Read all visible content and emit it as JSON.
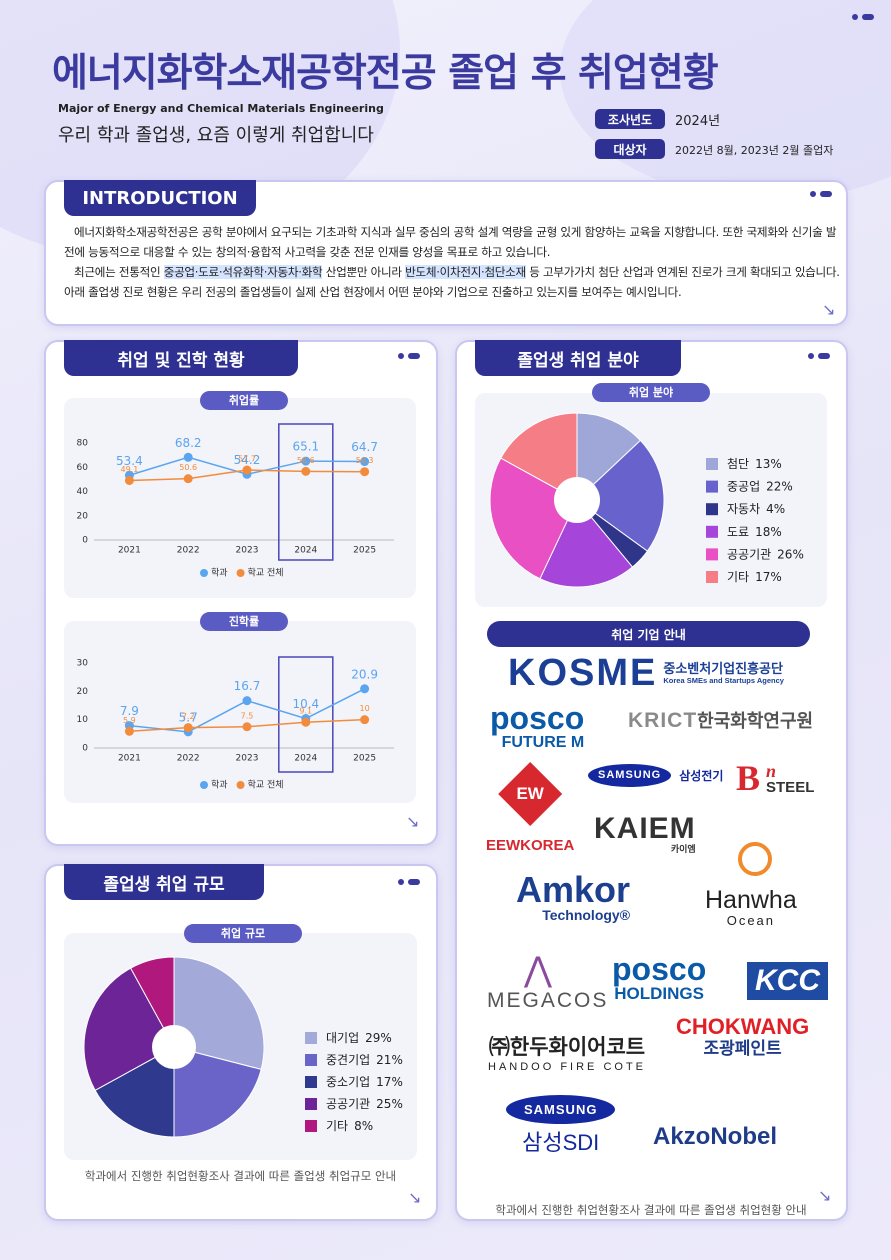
{
  "header": {
    "title": "에너지화학소재공학전공 졸업 후 취업현황",
    "subtitle_en": "Major of Energy and Chemical Materials Engineering",
    "subtitle": "우리 학과 졸업생, 요즘 이렇게 취업합니다",
    "info": [
      {
        "label": "조사년도",
        "value": "2024년"
      },
      {
        "label": "대상자",
        "value": "2022년 8월, 2023년 2월 졸업자"
      }
    ]
  },
  "introduction": {
    "title": "INTRODUCTION",
    "paragraphs": [
      [
        "에너지화학소재공학전공은 공학 분야에서 요구되는 기초과학 지식과 실무 중심의 공학 설계 역량을 균형 있게 함양하는 교육을 지향합니다. 또한 국제화와 신기술 발전에 능동적으로 대응할 수 있는 창의적·융합적 사고력을 갖춘 전문 인재를 양성을 목표로 하고 있습니다."
      ],
      [
        "최근에는 전통적인 ",
        "중공업·도료·석유화학·자동차·화학",
        " 산업뿐만 아니라 ",
        "반도체·이차전지·첨단소재",
        " 등 고부가가치 첨단 산업과 연계된 진로가 크게 확대되고 있습니다. 아래 졸업생 진로 현황은 우리 전공의 졸업생들이 실제 산업 현장에서 어떤 분야와 기업으로 진출하고 있는지를 보여주는 예시입니다."
      ]
    ]
  },
  "sections": [
    {
      "title": "취업 및 진학 현황"
    },
    {
      "title": "졸업생 취업 규모",
      "caption": "학과에서 진행한 취업현황조사 결과에 따른 졸업생 취업규모 안내"
    },
    {
      "title": "졸업생 취업 분야",
      "companies_title": "취업 기업 안내",
      "companies": [
        [
          "KOSME",
          "중소벤처기업진흥공단",
          "Korea SMEs and Startups Agency"
        ],
        [
          "posco",
          "FUTURE M"
        ],
        [
          "KRICT",
          "한국화학연구원"
        ],
        [
          "EW",
          "EEWKOREA"
        ],
        [
          "SAMSUNG",
          "삼성전기"
        ],
        [
          "B",
          "n",
          "STEEL"
        ],
        [
          "KAIEM",
          "카이엠"
        ],
        [
          "Amkor",
          "Technology®"
        ],
        [
          "Hanwha",
          "Ocean"
        ],
        [
          "MEGACOS"
        ],
        [
          "posco",
          "HOLDINGS"
        ],
        [
          "KCC"
        ],
        [
          "㈜한두화이어코트",
          "HANDOO FIRE COTE"
        ],
        [
          "CHOKWANG",
          "조광페인트"
        ],
        [
          "SAMSUNG",
          "삼성SDI"
        ],
        [
          "AkzoNobel"
        ]
      ],
      "caption": "학과에서 진행한 취업현황조사 결과에 따른 졸업생 취업현황 안내"
    }
  ],
  "chart_data": [
    {
      "type": "line",
      "title": "취업률",
      "categories": [
        "2021",
        "2022",
        "2023",
        "2024",
        "2025"
      ],
      "series": [
        {
          "name": "학과",
          "color": "#5aa5f0",
          "values": [
            53.4,
            68.2,
            54.2,
            65.1,
            64.7
          ]
        },
        {
          "name": "학교 전체",
          "color": "#f28c3c",
          "values": [
            49.1,
            50.6,
            57.7,
            56.6,
            56.3
          ]
        }
      ],
      "ylim": [
        0,
        80
      ],
      "yticks": [
        0,
        20,
        40,
        60,
        80
      ],
      "grid": false,
      "highlight": "2024"
    },
    {
      "type": "line",
      "title": "진학률",
      "categories": [
        "2021",
        "2022",
        "2023",
        "2024",
        "2025"
      ],
      "series": [
        {
          "name": "학과",
          "color": "#5aa5f0",
          "values": [
            7.9,
            5.7,
            16.7,
            10.4,
            20.9
          ]
        },
        {
          "name": "학교 전체",
          "color": "#f28c3c",
          "values": [
            5.9,
            7.2,
            7.5,
            9.1,
            10
          ]
        }
      ],
      "ylim": [
        0,
        30
      ],
      "yticks": [
        0,
        10,
        20,
        30
      ],
      "grid": false,
      "highlight": "2024"
    },
    {
      "type": "pie",
      "title": "취업 규모",
      "categories": [
        "대기업",
        "중견기업",
        "중소기업",
        "공공기관",
        "기타"
      ],
      "values": [
        29,
        21,
        17,
        25,
        8
      ],
      "value_labels": [
        "29%",
        "21%",
        "17%",
        "25%",
        "8%"
      ],
      "colors": [
        "#a3a9d9",
        "#6a64c9",
        "#2f3a8f",
        "#6d2496",
        "#b0187d"
      ]
    },
    {
      "type": "pie",
      "title": "취업 분야",
      "categories": [
        "첨단",
        "중공업",
        "자동차",
        "도료",
        "공공기관",
        "기타"
      ],
      "values": [
        13,
        22,
        4,
        18,
        26,
        17
      ],
      "value_labels": [
        "13%",
        "22%",
        "4%",
        "18%",
        "26%",
        "17%"
      ],
      "colors": [
        "#9fa6d8",
        "#6863cc",
        "#2f3588",
        "#a545d9",
        "#e850c3",
        "#f57d85"
      ]
    }
  ]
}
